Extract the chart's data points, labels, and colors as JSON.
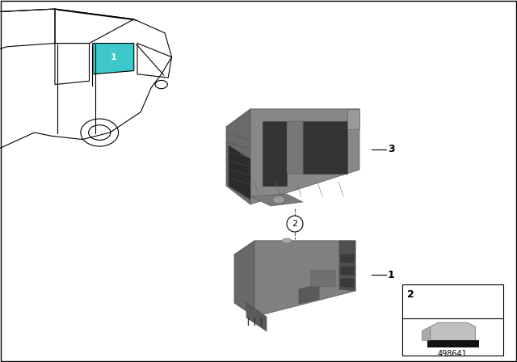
{
  "background_color": "#ffffff",
  "border_color": "#000000",
  "part_number": "498641",
  "car_color": "#000000",
  "highlight_color": "#3cc8c8",
  "component_color": "#888888",
  "component_dark": "#666666",
  "component_light": "#aaaaaa",
  "component_shadow": "#555555",
  "label_color": "#000000",
  "label_fontsize": 9,
  "part_number_fontsize": 7,
  "callout_circle_fill": "#3cc8c8",
  "callout_circle_text": "#ffffff",
  "bolt_circle_fill": "#ffffff",
  "bolt_circle_border": "#000000"
}
